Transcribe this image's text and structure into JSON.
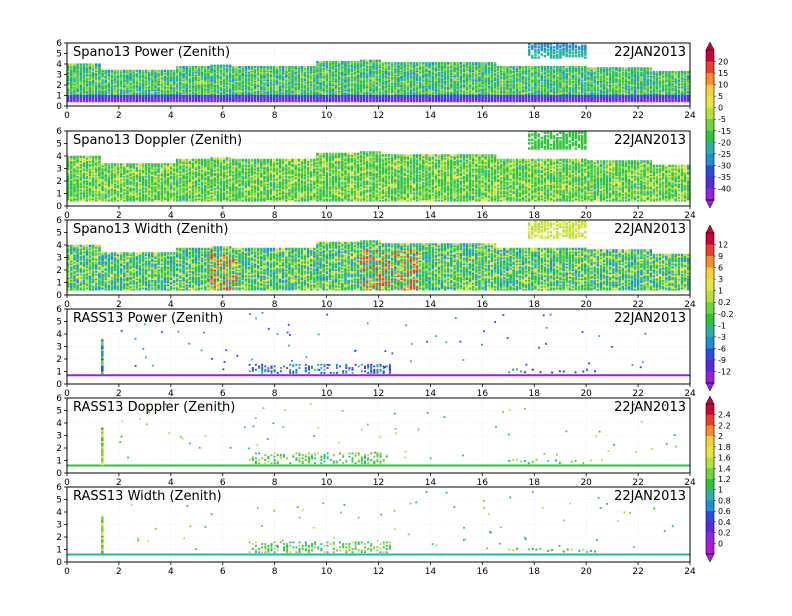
{
  "chart_data": [
    {
      "type": "heatmap",
      "title": "Spano13 Power (Zenith)",
      "date": "22JAN2013",
      "x_ticks": [
        "0",
        "2",
        "4",
        "6",
        "8",
        "10",
        "12",
        "14",
        "16",
        "18",
        "20",
        "22",
        "24"
      ],
      "y_ticks": [
        "0",
        "1",
        "2",
        "3",
        "4",
        "5",
        "6"
      ],
      "xlim": [
        0,
        24
      ],
      "ylim": [
        0,
        6
      ],
      "variable": "power",
      "echo_top_km": [
        [
          0,
          3.9
        ],
        [
          1.2,
          3.9
        ],
        [
          1.3,
          3.3
        ],
        [
          2.4,
          3.3
        ],
        [
          4.2,
          3.7
        ],
        [
          5.5,
          3.8
        ],
        [
          6.3,
          3.6
        ],
        [
          9.5,
          4.1
        ],
        [
          11.2,
          4.2
        ],
        [
          12,
          4.0
        ],
        [
          15,
          4.0
        ],
        [
          16.5,
          3.7
        ],
        [
          17.8,
          3.6
        ],
        [
          20,
          3.5
        ],
        [
          22.5,
          3.2
        ],
        [
          24,
          3.2
        ]
      ],
      "special": "17.8-20 h echoes 4.5-6 km",
      "colorbar_group": 1
    },
    {
      "type": "heatmap",
      "title": "Spano13 Doppler (Zenith)",
      "date": "22JAN2013",
      "x_ticks": [
        "0",
        "2",
        "4",
        "6",
        "8",
        "10",
        "12",
        "14",
        "16",
        "18",
        "20",
        "22",
        "24"
      ],
      "y_ticks": [
        "0",
        "1",
        "2",
        "3",
        "4",
        "5",
        "6"
      ],
      "xlim": [
        0,
        24
      ],
      "ylim": [
        0,
        6
      ],
      "variable": "doppler",
      "echo_top_km": [
        [
          0,
          3.9
        ],
        [
          1.2,
          3.9
        ],
        [
          1.3,
          3.3
        ],
        [
          2.4,
          3.3
        ],
        [
          4.2,
          3.7
        ],
        [
          5.5,
          3.8
        ],
        [
          6.3,
          3.6
        ],
        [
          9.5,
          4.1
        ],
        [
          11.2,
          4.2
        ],
        [
          12,
          4.0
        ],
        [
          15,
          4.0
        ],
        [
          16.5,
          3.7
        ],
        [
          17.8,
          3.6
        ],
        [
          20,
          3.5
        ],
        [
          22.5,
          3.2
        ],
        [
          24,
          3.2
        ]
      ],
      "special": "17.8-20 h echoes 4.5-6 km",
      "colorbar_group": 1
    },
    {
      "type": "heatmap",
      "title": "Spano13 Width (Zenith)",
      "date": "22JAN2013",
      "x_ticks": [
        "0",
        "2",
        "4",
        "6",
        "8",
        "10",
        "12",
        "14",
        "16",
        "18",
        "20",
        "22",
        "24"
      ],
      "y_ticks": [
        "0",
        "1",
        "2",
        "3",
        "4",
        "5",
        "6"
      ],
      "xlim": [
        0,
        24
      ],
      "ylim": [
        0,
        6
      ],
      "variable": "width",
      "echo_top_km": [
        [
          0,
          3.9
        ],
        [
          1.2,
          3.9
        ],
        [
          1.3,
          3.3
        ],
        [
          2.4,
          3.3
        ],
        [
          4.2,
          3.7
        ],
        [
          5.5,
          3.8
        ],
        [
          6.3,
          3.6
        ],
        [
          9.5,
          4.1
        ],
        [
          11.2,
          4.2
        ],
        [
          12,
          4.0
        ],
        [
          15,
          4.0
        ],
        [
          16.5,
          3.7
        ],
        [
          17.8,
          3.6
        ],
        [
          20,
          3.5
        ],
        [
          22.5,
          3.2
        ],
        [
          24,
          3.2
        ]
      ],
      "special": "17.8-20 h echoes 4.5-6 km",
      "colorbar_group": 2
    },
    {
      "type": "heatmap",
      "title": "RASS13 Power (Zenith)",
      "date": "22JAN2013",
      "x_ticks": [
        "0",
        "2",
        "4",
        "6",
        "8",
        "10",
        "12",
        "14",
        "16",
        "18",
        "20",
        "22",
        "24"
      ],
      "y_ticks": [
        "0",
        "1",
        "2",
        "3",
        "4",
        "5",
        "6"
      ],
      "xlim": [
        0,
        24
      ],
      "ylim": [
        0,
        6
      ],
      "variable": "power",
      "baseline_km": 0.7,
      "spike_hour": 1.35,
      "colorbar_group": 2
    },
    {
      "type": "heatmap",
      "title": "RASS13 Doppler (Zenith)",
      "date": "22JAN2013",
      "x_ticks": [
        "0",
        "2",
        "4",
        "6",
        "8",
        "10",
        "12",
        "14",
        "16",
        "18",
        "20",
        "22",
        "24"
      ],
      "y_ticks": [
        "0",
        "1",
        "2",
        "3",
        "4",
        "5",
        "6"
      ],
      "xlim": [
        0,
        24
      ],
      "ylim": [
        0,
        6
      ],
      "variable": "doppler",
      "baseline_km": 0.6,
      "spike_hour": 1.35,
      "colorbar_group": 3
    },
    {
      "type": "heatmap",
      "title": "RASS13 Width (Zenith)",
      "date": "22JAN2013",
      "x_ticks": [
        "0",
        "2",
        "4",
        "6",
        "8",
        "10",
        "12",
        "14",
        "16",
        "18",
        "20",
        "22",
        "24"
      ],
      "y_ticks": [
        "0",
        "1",
        "2",
        "3",
        "4",
        "5",
        "6"
      ],
      "xlim": [
        0,
        24
      ],
      "ylim": [
        0,
        6
      ],
      "variable": "width",
      "baseline_km": 0.6,
      "spike_hour": 1.35,
      "colorbar_group": 3
    }
  ],
  "colorbars": [
    {
      "labels": [
        "20",
        "15",
        "10",
        "5",
        "0",
        "-5",
        "-15",
        "-20",
        "-25",
        "-30",
        "-35",
        "-40"
      ],
      "colors": [
        "#d0003a",
        "#f03c2a",
        "#ff8a2a",
        "#f5d23a",
        "#e6e640",
        "#b8e03a",
        "#6ed43a",
        "#2ec43a",
        "#28b4a0",
        "#1e90d8",
        "#2c4ce0",
        "#5a28e0",
        "#9a20e0"
      ]
    },
    {
      "labels": [
        "12",
        "9",
        "6",
        "3",
        "1",
        "0.2",
        "-0.2",
        "-1",
        "-3",
        "-6",
        "-9",
        "-12"
      ],
      "colors": [
        "#d0003a",
        "#f03c2a",
        "#ff8a2a",
        "#f5d23a",
        "#e6e640",
        "#b8e03a",
        "#6ed43a",
        "#2ec43a",
        "#28b4a0",
        "#1e90d8",
        "#2c4ce0",
        "#5a28e0",
        "#9a20e0"
      ]
    },
    {
      "labels": [
        "2.4",
        "2.2",
        "2",
        "1.8",
        "1.6",
        "1.4",
        "1.2",
        "1",
        "0.8",
        "0.6",
        "0.4",
        "0.2",
        "0"
      ],
      "colors": [
        "#d0003a",
        "#f03c2a",
        "#ff8a2a",
        "#f5d23a",
        "#e6e640",
        "#b8e03a",
        "#6ed43a",
        "#2ec43a",
        "#28b4a0",
        "#1e90d8",
        "#2c4ce0",
        "#5a28e0",
        "#9a20e0",
        "#b418e0"
      ]
    }
  ]
}
